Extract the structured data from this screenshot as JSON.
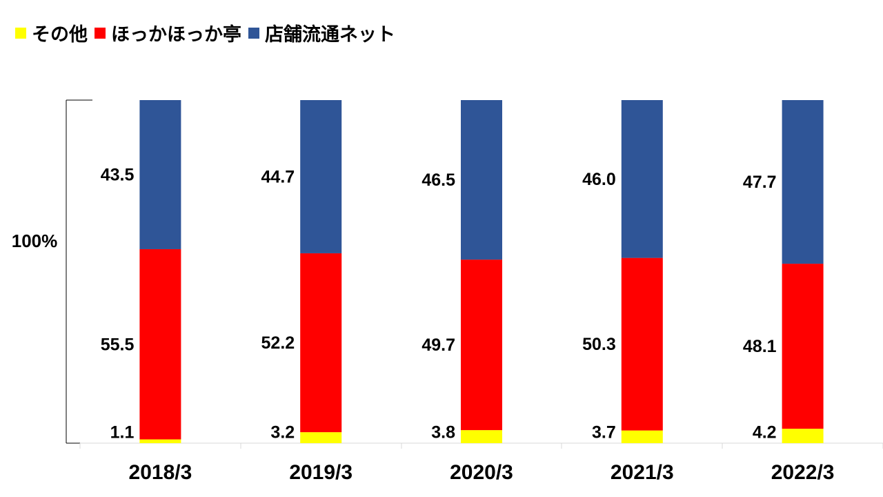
{
  "chart_data": {
    "type": "bar",
    "stacked": true,
    "normalized_to_100": true,
    "categories": [
      "2018/3",
      "2019/3",
      "2020/3",
      "2021/3",
      "2022/3"
    ],
    "series": [
      {
        "name": "その他",
        "color": "#ffff00",
        "values": [
          1.1,
          3.2,
          3.8,
          3.7,
          4.2
        ]
      },
      {
        "name": "ほっかほっか亭",
        "color": "#ff0000",
        "values": [
          55.5,
          52.2,
          49.7,
          50.3,
          48.1
        ]
      },
      {
        "name": "店舗流通ネット",
        "color": "#2f5597",
        "values": [
          43.5,
          44.7,
          46.5,
          46.0,
          47.7
        ]
      }
    ],
    "value_labels": [
      [
        "1.1",
        "55.5",
        "43.5"
      ],
      [
        "3.2",
        "52.2",
        "44.7"
      ],
      [
        "3.8",
        "49.7",
        "46.5"
      ],
      [
        "3.7",
        "50.3",
        "46.0"
      ],
      [
        "4.2",
        "48.1",
        "47.7"
      ]
    ],
    "ylabel": "100%",
    "legend_position": "top-left"
  }
}
